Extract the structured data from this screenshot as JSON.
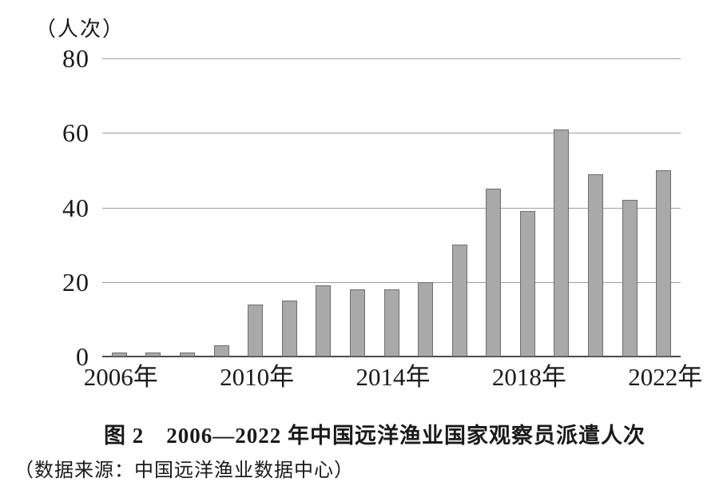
{
  "figure": {
    "unit_label": "（人次）",
    "caption_title": "图 2　2006—2022 年中国远洋渔业国家观察员派遣人次",
    "source_note": "（数据来源：中国远洋渔业数据中心）"
  },
  "chart_data": {
    "type": "bar",
    "title": "图 2　2006—2022 年中国远洋渔业国家观察员派遣人次",
    "ylabel": "（人次）",
    "xlabel": "",
    "categories": [
      "2006",
      "2007",
      "2008",
      "2009",
      "2010",
      "2011",
      "2012",
      "2013",
      "2014",
      "2015",
      "2016",
      "2017",
      "2018",
      "2019",
      "2020",
      "2021",
      "2022"
    ],
    "values": [
      1,
      1,
      1,
      3,
      14,
      15,
      19,
      18,
      18,
      20,
      30,
      45,
      39,
      61,
      49,
      42,
      50
    ],
    "ylim": [
      0,
      80
    ],
    "yticks": [
      0,
      20,
      40,
      60,
      80
    ],
    "xtick_labels": [
      "2006年",
      "2010年",
      "2014年",
      "2018年",
      "2022年"
    ],
    "xtick_positions": [
      0,
      4,
      8,
      12,
      16
    ],
    "grid": "horizontal",
    "legend": "none",
    "bar_color": "#a9a9a9",
    "bar_border_color": "#6e6e6e",
    "gridline_color": "#9d9d9d",
    "axis_color": "#4a4a4a",
    "source": "（数据来源：中国远洋渔业数据中心）"
  }
}
